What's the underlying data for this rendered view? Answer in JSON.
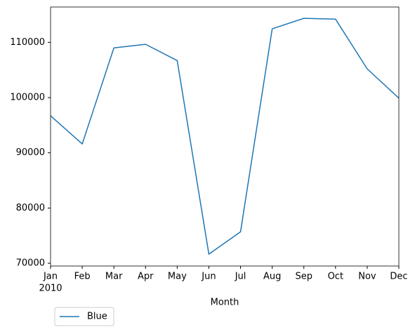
{
  "chart_data": {
    "type": "line",
    "x_label": "Month",
    "categories": [
      "Jan",
      "Feb",
      "Mar",
      "Apr",
      "May",
      "Jun",
      "Jul",
      "Aug",
      "Sep",
      "Oct",
      "Nov",
      "Dec"
    ],
    "year_label": "2010",
    "series": [
      {
        "name": "Blue",
        "color": "#1f77b4",
        "values": [
          96700,
          91600,
          109000,
          109650,
          106700,
          71650,
          75700,
          112450,
          114350,
          114200,
          105200,
          99900
        ]
      }
    ],
    "ylim": [
      69500,
      116400
    ],
    "yticks": [
      70000,
      80000,
      90000,
      100000,
      110000
    ],
    "grid": false,
    "legend": "below-left"
  }
}
